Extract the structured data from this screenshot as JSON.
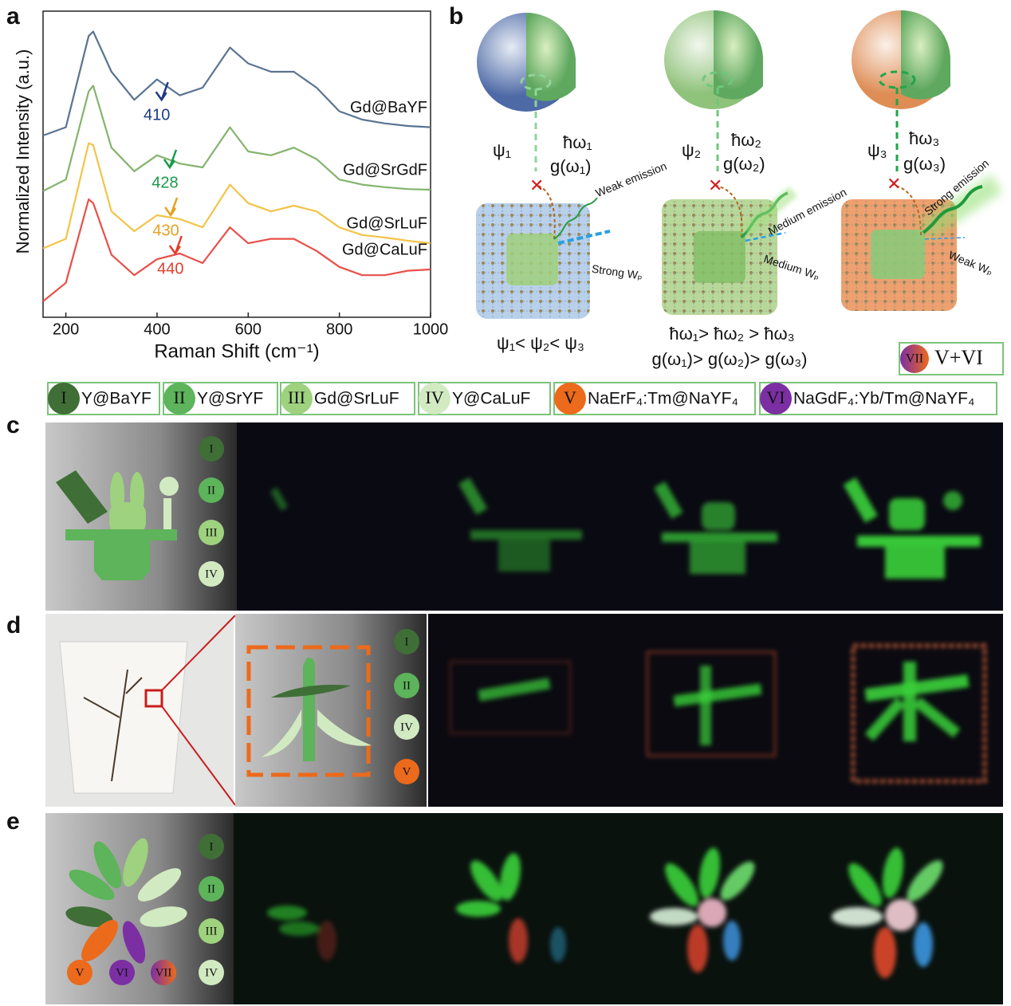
{
  "panel_labels": [
    "a",
    "b",
    "c",
    "d",
    "e"
  ],
  "chart_data": {
    "type": "line",
    "x_label": "Raman Shift (cm⁻¹)",
    "y_label": "Normalized Intensity (a.u.)",
    "x": [
      150,
      200,
      250,
      260,
      300,
      350,
      400,
      450,
      500,
      560,
      600,
      650,
      700,
      750,
      800,
      850,
      900,
      950,
      1000
    ],
    "series": [
      {
        "name": "Gd@BaYF",
        "color": "#5a7391",
        "values": [
          2.85,
          2.98,
          4.41,
          4.48,
          3.85,
          3.41,
          3.73,
          3.48,
          3.6,
          4.23,
          3.98,
          3.85,
          3.85,
          3.6,
          3.23,
          3.1,
          3.04,
          3.0,
          2.98
        ]
      },
      {
        "name": "Gd@SrGdF",
        "color": "#84b46c",
        "values": [
          1.98,
          2.16,
          3.54,
          3.63,
          2.66,
          2.29,
          2.54,
          2.41,
          2.35,
          2.98,
          2.6,
          2.54,
          2.66,
          2.48,
          2.16,
          2.08,
          2.04,
          2.01,
          2.0
        ]
      },
      {
        "name": "Gd@SrLuF",
        "color": "#f2c448",
        "values": [
          1.08,
          1.23,
          2.73,
          2.7,
          1.66,
          1.35,
          1.6,
          1.54,
          1.41,
          2.08,
          1.79,
          1.66,
          1.75,
          1.66,
          1.41,
          1.29,
          1.25,
          1.2,
          1.16
        ]
      },
      {
        "name": "Gd@CaLuF",
        "color": "#e8504a",
        "values": [
          0.25,
          0.54,
          1.85,
          1.79,
          0.98,
          0.66,
          0.91,
          1.0,
          0.85,
          1.41,
          1.16,
          1.23,
          1.23,
          1.04,
          0.79,
          0.66,
          0.66,
          0.73,
          0.75
        ]
      }
    ],
    "annotations": [
      {
        "x": 410,
        "y": 3.41,
        "color": "#1d3a8a"
      },
      {
        "x": 428,
        "y": 2.35,
        "color": "#1a9a4a"
      },
      {
        "x": 430,
        "y": 1.6,
        "color": "#e8a020"
      },
      {
        "x": 440,
        "y": 1.0,
        "color": "#e04030"
      }
    ],
    "xlim": [
      150,
      1000
    ],
    "ylim": [
      0,
      4.8
    ],
    "xticks": [
      200,
      400,
      600,
      800,
      1000
    ]
  },
  "diagram_b": {
    "columns": [
      {
        "psi": "ψ₁",
        "energy": "ħω₁",
        "g": "g(ω₁)",
        "emission": "Weak emission",
        "wp": "Strong Wₚ"
      },
      {
        "psi": "ψ₂",
        "energy": "ħω₂",
        "g": "g(ω₂)",
        "emission": "Medium emission",
        "wp": "Medium Wₚ"
      },
      {
        "psi": "ψ₃",
        "energy": "ħω₃",
        "g": "g(ω₃)",
        "emission": "Strong emission",
        "wp": "Weak Wₚ"
      }
    ],
    "relations": [
      "ψ₁< ψ₂< ψ₃",
      "ħω₁> ħω₂ > ħω₃",
      "g(ω₁)> g(ω₂)> g(ω₃)"
    ],
    "badge": {
      "roman": "VII",
      "text": "V+VI"
    }
  },
  "legend": [
    {
      "roman": "I",
      "label": "Y@BaYF",
      "color": "#3f6e36"
    },
    {
      "roman": "II",
      "label": "Y@SrYF",
      "color": "#5db45a"
    },
    {
      "roman": "III",
      "label": "Gd@SrLuF",
      "color": "#9ed27e"
    },
    {
      "roman": "IV",
      "label": "Y@CaLuF",
      "color": "#d2eac2"
    },
    {
      "roman": "V",
      "label": "NaErF₄:Tm@NaYF₄",
      "color": "#ec6a1c"
    },
    {
      "roman": "VI",
      "label": "NaGdF₄:Yb/Tm@NaYF₄",
      "color": "#7b2fa3"
    }
  ],
  "panel_c": {
    "markers": [
      "I",
      "II",
      "III",
      "IV"
    ]
  },
  "panel_d": {
    "markers": [
      "I",
      "II",
      "IV",
      "V"
    ]
  },
  "panel_e": {
    "markers": [
      "I",
      "II",
      "III",
      "IV"
    ],
    "flower_markers": [
      "V",
      "VI",
      "VII"
    ]
  }
}
